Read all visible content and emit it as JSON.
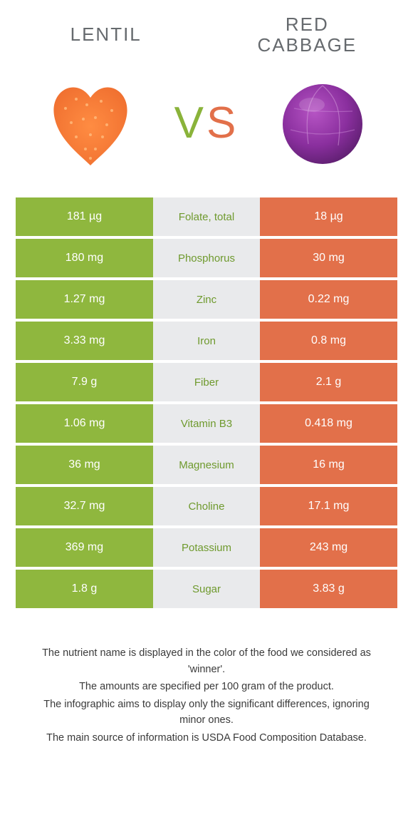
{
  "colors": {
    "left_win": "#8fb73e",
    "right_win": "#e2704a",
    "left_lose": "#e2704a",
    "right_lose": "#8fb73e",
    "mid_bg": "#e9eaec",
    "mid_text_left": "#6f9a2e",
    "mid_text_right": "#d35a35"
  },
  "titles": {
    "left": "LENTIL",
    "right": "RED\nCABBAGE",
    "vs_v": "V",
    "vs_s": "S"
  },
  "rows": [
    {
      "nutrient": "Folate, total",
      "left": "181 µg",
      "right": "18 µg",
      "winner": "left"
    },
    {
      "nutrient": "Phosphorus",
      "left": "180 mg",
      "right": "30 mg",
      "winner": "left"
    },
    {
      "nutrient": "Zinc",
      "left": "1.27 mg",
      "right": "0.22 mg",
      "winner": "left"
    },
    {
      "nutrient": "Iron",
      "left": "3.33 mg",
      "right": "0.8 mg",
      "winner": "left"
    },
    {
      "nutrient": "Fiber",
      "left": "7.9 g",
      "right": "2.1 g",
      "winner": "left"
    },
    {
      "nutrient": "Vitamin B3",
      "left": "1.06 mg",
      "right": "0.418 mg",
      "winner": "left"
    },
    {
      "nutrient": "Magnesium",
      "left": "36 mg",
      "right": "16 mg",
      "winner": "left"
    },
    {
      "nutrient": "Choline",
      "left": "32.7 mg",
      "right": "17.1 mg",
      "winner": "left"
    },
    {
      "nutrient": "Potassium",
      "left": "369 mg",
      "right": "243 mg",
      "winner": "left"
    },
    {
      "nutrient": "Sugar",
      "left": "1.8 g",
      "right": "3.83 g",
      "winner": "left"
    }
  ],
  "footer": {
    "p1": "The nutrient name is displayed in the color of the food we considered as 'winner'.",
    "p2": "The amounts are specified per 100 gram of the product.",
    "p3": "The infographic aims to display only the significant differences, ignoring minor ones.",
    "p4": "The main source of information is USDA Food Composition Database."
  }
}
